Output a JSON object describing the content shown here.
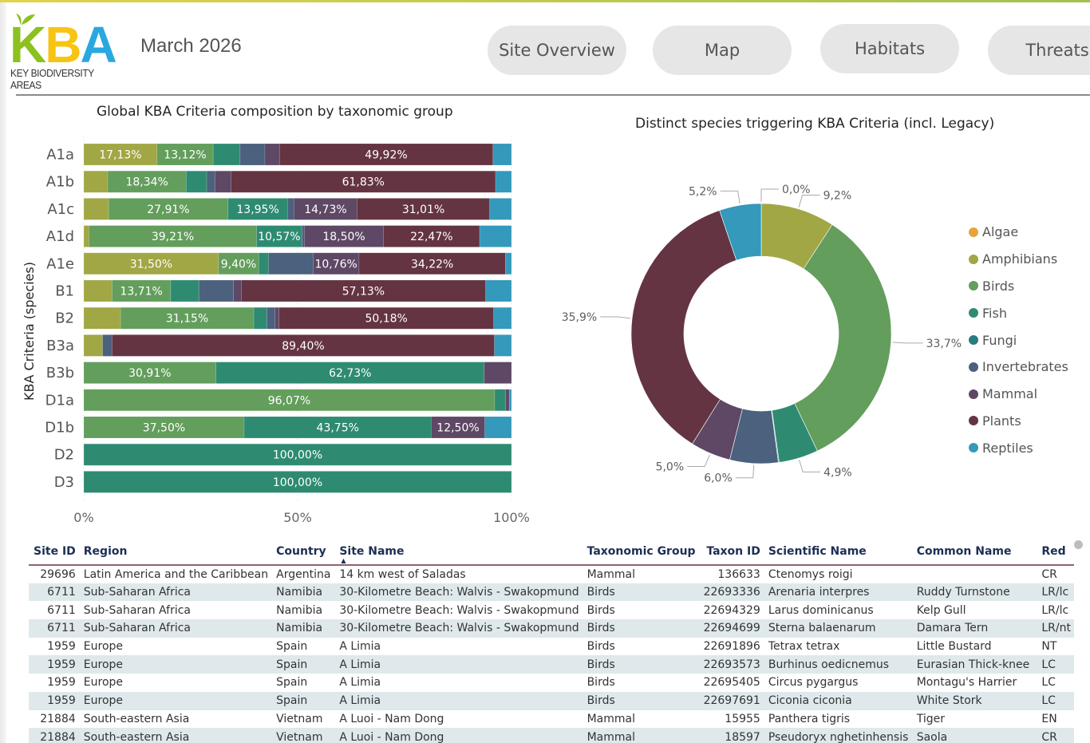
{
  "header": {
    "logo_text": [
      "K",
      "B",
      "A"
    ],
    "logo_subtitle": "KEY BIODIVERSITY AREAS",
    "report_date": "March 2026",
    "nav_buttons": [
      {
        "label": "Site Overview"
      },
      {
        "label": "Map"
      },
      {
        "label": "Habitats"
      },
      {
        "label": "Threats"
      }
    ]
  },
  "colors": {
    "Algae": "#e8a33c",
    "Amphibians": "#a0a744",
    "Birds": "#639e5c",
    "Fish": "#2e8b72",
    "Fungi": "#277d82",
    "Invertebrates": "#4b617d",
    "Mammal": "#5e4865",
    "Plants": "#643442",
    "Reptiles": "#3499bb"
  },
  "chart_data": [
    {
      "type": "bar",
      "orientation": "horizontal",
      "stacked": "100%",
      "title": "Global KBA Criteria composition by taxonomic group",
      "xlabel": "",
      "ylabel": "KBA Criteria (species)",
      "xlim": [
        0,
        100
      ],
      "xticks": [
        "0%",
        "50%",
        "100%"
      ],
      "categories": [
        "A1a",
        "A1b",
        "A1c",
        "A1d",
        "A1e",
        "B1",
        "B2",
        "B3a",
        "B3b",
        "D1a",
        "D1b",
        "D2",
        "D3"
      ],
      "series": [
        {
          "name": "Amphibians",
          "values": [
            17.13,
            5.6,
            5.8,
            1.2,
            31.5,
            6.6,
            8.6,
            4.4,
            0,
            0,
            0,
            0,
            0
          ],
          "labels": [
            "17,13%",
            "",
            "",
            "",
            "31,50%",
            "",
            "",
            "",
            "",
            "",
            "",
            "",
            ""
          ]
        },
        {
          "name": "Birds",
          "values": [
            13.12,
            18.34,
            27.91,
            39.21,
            9.4,
            13.71,
            31.15,
            0,
            30.91,
            96.07,
            37.5,
            0,
            0
          ],
          "labels": [
            "13,12%",
            "18,34%",
            "27,91%",
            "39,21%",
            "9,40%",
            "13,71%",
            "31,15%",
            "",
            "30,91%",
            "96,07%",
            "37,50%",
            "",
            ""
          ]
        },
        {
          "name": "Fish",
          "values": [
            6.3,
            4.8,
            13.95,
            10.57,
            2.3,
            6.6,
            3.1,
            0,
            62.73,
            2.6,
            43.75,
            100.0,
            100.0
          ],
          "labels": [
            "",
            "",
            "13,95%",
            "10,57%",
            "",
            "",
            "",
            "",
            "62,73%",
            "",
            "43,75%",
            "100,00%",
            "100,00%"
          ]
        },
        {
          "name": "Invertebrates",
          "values": [
            5.8,
            1.9,
            1.5,
            0.6,
            10.4,
            8.1,
            1.8,
            2.2,
            0,
            0,
            0,
            0,
            0
          ],
          "labels": [
            "",
            "",
            "",
            "",
            "",
            "",
            "",
            "",
            "",
            "",
            "",
            "",
            ""
          ]
        },
        {
          "name": "Mammal",
          "values": [
            3.4,
            3.8,
            14.73,
            18.5,
            10.76,
            1.8,
            1.0,
            0,
            6.36,
            0.8,
            12.5,
            0,
            0
          ],
          "labels": [
            "",
            "",
            "14,73%",
            "18,50%",
            "10,76%",
            "",
            "",
            "",
            "",
            "",
            "12,50%",
            "",
            ""
          ]
        },
        {
          "name": "Plants",
          "values": [
            49.92,
            61.83,
            31.01,
            22.47,
            34.22,
            57.13,
            50.18,
            89.4,
            0,
            0,
            0,
            0,
            0
          ],
          "labels": [
            "49,92%",
            "61,83%",
            "31,01%",
            "22,47%",
            "34,22%",
            "57,13%",
            "50,18%",
            "89,40%",
            "",
            "",
            "",
            "",
            ""
          ]
        },
        {
          "name": "Reptiles",
          "values": [
            4.33,
            3.73,
            5.1,
            7.45,
            1.42,
            6.06,
            4.17,
            4.0,
            0,
            0.53,
            6.25,
            0,
            0
          ],
          "labels": [
            "",
            "",
            "",
            "",
            "",
            "",
            "",
            "",
            "",
            "",
            "",
            "",
            ""
          ]
        }
      ],
      "grid": true,
      "legend": "none"
    },
    {
      "type": "pie",
      "variant": "donut",
      "title": "Distinct species triggering KBA Criteria (incl. Legacy)",
      "slices": [
        {
          "name": "Algae",
          "value": 0.0,
          "label": "0,0%"
        },
        {
          "name": "Amphibians",
          "value": 9.2,
          "label": "9,2%"
        },
        {
          "name": "Birds",
          "value": 33.7,
          "label": "33,7%"
        },
        {
          "name": "Fish",
          "value": 4.9,
          "label": "4,9%"
        },
        {
          "name": "Fungi",
          "value": 0.1,
          "label": ""
        },
        {
          "name": "Invertebrates",
          "value": 6.0,
          "label": "6,0%"
        },
        {
          "name": "Mammal",
          "value": 5.0,
          "label": "5,0%"
        },
        {
          "name": "Plants",
          "value": 35.9,
          "label": "35,9%"
        },
        {
          "name": "Reptiles",
          "value": 5.2,
          "label": "5,2%"
        }
      ],
      "legend": "right",
      "legend_entries": [
        "Algae",
        "Amphibians",
        "Birds",
        "Fish",
        "Fungi",
        "Invertebrates",
        "Mammal",
        "Plants",
        "Reptiles"
      ]
    }
  ],
  "table": {
    "columns": [
      {
        "label": "Site ID",
        "align": "right"
      },
      {
        "label": "Region",
        "align": "left"
      },
      {
        "label": "Country",
        "align": "left"
      },
      {
        "label": "Site Name",
        "align": "left",
        "sorted": "asc"
      },
      {
        "label": "Taxonomic Group",
        "align": "left"
      },
      {
        "label": "Taxon ID",
        "align": "right"
      },
      {
        "label": "Scientific Name",
        "align": "left"
      },
      {
        "label": "Common Name",
        "align": "left"
      },
      {
        "label": "Red",
        "align": "left"
      }
    ],
    "rows": [
      [
        "29696",
        "Latin America and the Caribbean",
        "Argentina",
        "14 km west of Saladas",
        "Mammal",
        "136633",
        "Ctenomys roigi",
        "",
        "CR"
      ],
      [
        "6711",
        "Sub-Saharan Africa",
        "Namibia",
        "30-Kilometre Beach: Walvis - Swakopmund",
        "Birds",
        "22693336",
        "Arenaria interpres",
        "Ruddy Turnstone",
        "LR/lc"
      ],
      [
        "6711",
        "Sub-Saharan Africa",
        "Namibia",
        "30-Kilometre Beach: Walvis - Swakopmund",
        "Birds",
        "22694329",
        "Larus dominicanus",
        "Kelp Gull",
        "LR/lc"
      ],
      [
        "6711",
        "Sub-Saharan Africa",
        "Namibia",
        "30-Kilometre Beach: Walvis - Swakopmund",
        "Birds",
        "22694699",
        "Sterna balaenarum",
        "Damara Tern",
        "LR/nt"
      ],
      [
        "1959",
        "Europe",
        "Spain",
        "A Limia",
        "Birds",
        "22691896",
        "Tetrax tetrax",
        "Little Bustard",
        "NT"
      ],
      [
        "1959",
        "Europe",
        "Spain",
        "A Limia",
        "Birds",
        "22693573",
        "Burhinus oedicnemus",
        "Eurasian Thick-knee",
        "LC"
      ],
      [
        "1959",
        "Europe",
        "Spain",
        "A Limia",
        "Birds",
        "22695405",
        "Circus pygargus",
        "Montagu's Harrier",
        "LC"
      ],
      [
        "1959",
        "Europe",
        "Spain",
        "A Limia",
        "Birds",
        "22697691",
        "Ciconia ciconia",
        "White Stork",
        "LC"
      ],
      [
        "21884",
        "South-eastern Asia",
        "Vietnam",
        "A Luoi - Nam Dong",
        "Mammal",
        "15955",
        "Panthera tigris",
        "Tiger",
        "EN"
      ],
      [
        "21884",
        "South-eastern Asia",
        "Vietnam",
        "A Luoi - Nam Dong",
        "Mammal",
        "18597",
        "Pseudoryx nghetinhensis",
        "Saola",
        "CR"
      ]
    ]
  }
}
